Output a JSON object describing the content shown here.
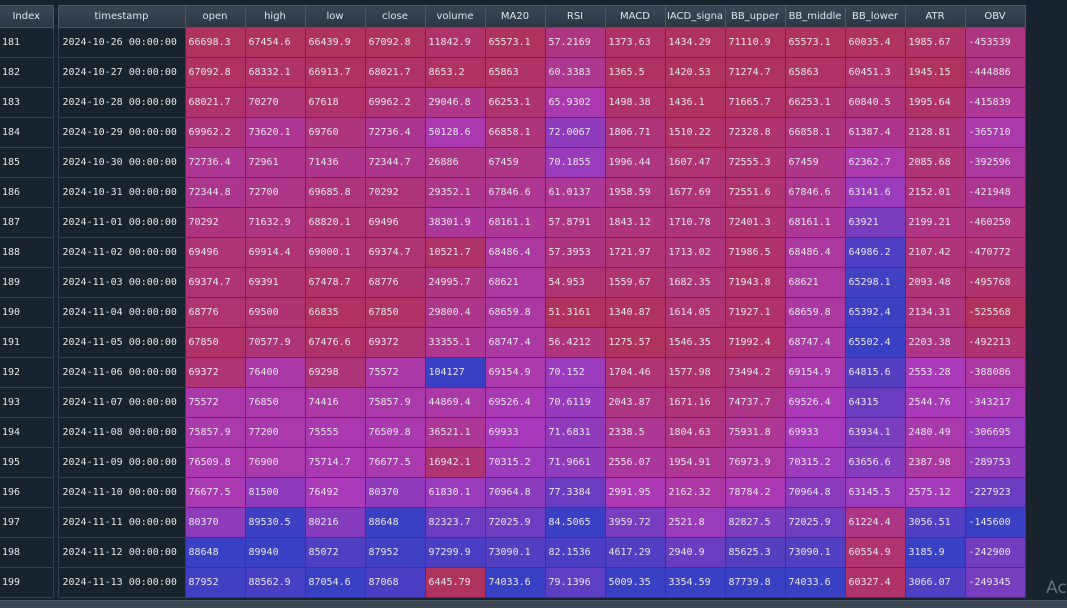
{
  "columns": [
    "Index",
    "timestamp",
    "open",
    "high",
    "low",
    "close",
    "volume",
    "MA20",
    "RSI",
    "MACD",
    "IACD_signa",
    "BB_upper",
    "BB_middle",
    "BB_lower",
    "ATR",
    "OBV"
  ],
  "rows": [
    {
      "index": "181",
      "cells": [
        "2024-10-26 00:00:00",
        "66698.3",
        "67454.6",
        "66439.9",
        "67092.8",
        "11842.9",
        "65573.1",
        "57.2169",
        "1373.63",
        "1434.29",
        "71110.9",
        "65573.1",
        "60035.4",
        "1985.67",
        "-453539"
      ]
    },
    {
      "index": "182",
      "cells": [
        "2024-10-27 00:00:00",
        "67092.8",
        "68332.1",
        "66913.7",
        "68021.7",
        "8653.2",
        "65863",
        "60.3383",
        "1365.5",
        "1420.53",
        "71274.7",
        "65863",
        "60451.3",
        "1945.15",
        "-444886"
      ]
    },
    {
      "index": "183",
      "cells": [
        "2024-10-28 00:00:00",
        "68021.7",
        "70270",
        "67618",
        "69962.2",
        "29046.8",
        "66253.1",
        "65.9302",
        "1498.38",
        "1436.1",
        "71665.7",
        "66253.1",
        "60840.5",
        "1995.64",
        "-415839"
      ]
    },
    {
      "index": "184",
      "cells": [
        "2024-10-29 00:00:00",
        "69962.2",
        "73620.1",
        "69760",
        "72736.4",
        "50128.6",
        "66858.1",
        "72.0067",
        "1806.71",
        "1510.22",
        "72328.8",
        "66858.1",
        "61387.4",
        "2128.81",
        "-365710"
      ]
    },
    {
      "index": "185",
      "cells": [
        "2024-10-30 00:00:00",
        "72736.4",
        "72961",
        "71436",
        "72344.7",
        "26886",
        "67459",
        "70.1855",
        "1996.44",
        "1607.47",
        "72555.3",
        "67459",
        "62362.7",
        "2085.68",
        "-392596"
      ]
    },
    {
      "index": "186",
      "cells": [
        "2024-10-31 00:00:00",
        "72344.8",
        "72700",
        "69685.8",
        "70292",
        "29352.1",
        "67846.6",
        "61.0137",
        "1958.59",
        "1677.69",
        "72551.6",
        "67846.6",
        "63141.6",
        "2152.01",
        "-421948"
      ]
    },
    {
      "index": "187",
      "cells": [
        "2024-11-01 00:00:00",
        "70292",
        "71632.9",
        "68820.1",
        "69496",
        "38301.9",
        "68161.1",
        "57.8791",
        "1843.12",
        "1710.78",
        "72401.3",
        "68161.1",
        "63921",
        "2199.21",
        "-460250"
      ]
    },
    {
      "index": "188",
      "cells": [
        "2024-11-02 00:00:00",
        "69496",
        "69914.4",
        "69000.1",
        "69374.7",
        "10521.7",
        "68486.4",
        "57.3953",
        "1721.97",
        "1713.02",
        "71986.5",
        "68486.4",
        "64986.2",
        "2107.42",
        "-470772"
      ]
    },
    {
      "index": "189",
      "cells": [
        "2024-11-03 00:00:00",
        "69374.7",
        "69391",
        "67478.7",
        "68776",
        "24995.7",
        "68621",
        "54.953",
        "1559.67",
        "1682.35",
        "71943.8",
        "68621",
        "65298.1",
        "2093.48",
        "-495768"
      ]
    },
    {
      "index": "190",
      "cells": [
        "2024-11-04 00:00:00",
        "68776",
        "69500",
        "66835",
        "67850",
        "29800.4",
        "68659.8",
        "51.3161",
        "1340.87",
        "1614.05",
        "71927.1",
        "68659.8",
        "65392.4",
        "2134.31",
        "-525568"
      ]
    },
    {
      "index": "191",
      "cells": [
        "2024-11-05 00:00:00",
        "67850",
        "70577.9",
        "67476.6",
        "69372",
        "33355.1",
        "68747.4",
        "56.4212",
        "1275.57",
        "1546.35",
        "71992.4",
        "68747.4",
        "65502.4",
        "2203.38",
        "-492213"
      ]
    },
    {
      "index": "192",
      "cells": [
        "2024-11-06 00:00:00",
        "69372",
        "76400",
        "69298",
        "75572",
        "104127",
        "69154.9",
        "70.152",
        "1704.46",
        "1577.98",
        "73494.2",
        "69154.9",
        "64815.6",
        "2553.28",
        "-388086"
      ]
    },
    {
      "index": "193",
      "cells": [
        "2024-11-07 00:00:00",
        "75572",
        "76850",
        "74416",
        "75857.9",
        "44869.4",
        "69526.4",
        "70.6119",
        "2043.87",
        "1671.16",
        "74737.7",
        "69526.4",
        "64315",
        "2544.76",
        "-343217"
      ]
    },
    {
      "index": "194",
      "cells": [
        "2024-11-08 00:00:00",
        "75857.9",
        "77200",
        "75555",
        "76509.8",
        "36521.1",
        "69933",
        "71.6831",
        "2338.5",
        "1804.63",
        "75931.8",
        "69933",
        "63934.1",
        "2480.49",
        "-306695"
      ]
    },
    {
      "index": "195",
      "cells": [
        "2024-11-09 00:00:00",
        "76509.8",
        "76900",
        "75714.7",
        "76677.5",
        "16942.1",
        "70315.2",
        "71.9661",
        "2556.07",
        "1954.91",
        "76973.9",
        "70315.2",
        "63656.6",
        "2387.98",
        "-289753"
      ]
    },
    {
      "index": "196",
      "cells": [
        "2024-11-10 00:00:00",
        "76677.5",
        "81500",
        "76492",
        "80370",
        "61830.1",
        "70964.8",
        "77.3384",
        "2991.95",
        "2162.32",
        "78784.2",
        "70964.8",
        "63145.5",
        "2575.12",
        "-227923"
      ]
    },
    {
      "index": "197",
      "cells": [
        "2024-11-11 00:00:00",
        "80370",
        "89530.5",
        "80216",
        "88648",
        "82323.7",
        "72025.9",
        "84.5065",
        "3959.72",
        "2521.8",
        "82827.5",
        "72025.9",
        "61224.4",
        "3056.51",
        "-145600"
      ]
    },
    {
      "index": "198",
      "cells": [
        "2024-11-12 00:00:00",
        "88648",
        "89940",
        "85072",
        "87952",
        "97299.9",
        "73090.1",
        "82.1536",
        "4617.29",
        "2940.9",
        "85625.3",
        "73090.1",
        "60554.9",
        "3185.9",
        "-242900"
      ]
    },
    {
      "index": "199",
      "cells": [
        "2024-11-13 00:00:00",
        "87952",
        "88562.9",
        "87054.6",
        "87068",
        "6445.79",
        "74033.6",
        "79.1396",
        "5009.35",
        "3354.59",
        "87739.8",
        "74033.6",
        "60327.4",
        "3066.07",
        "-249345"
      ]
    }
  ],
  "colors": {
    "low": "#b0325f",
    "mid": "#a93aba",
    "high": "#3a40c4"
  },
  "watermark": "Ac"
}
